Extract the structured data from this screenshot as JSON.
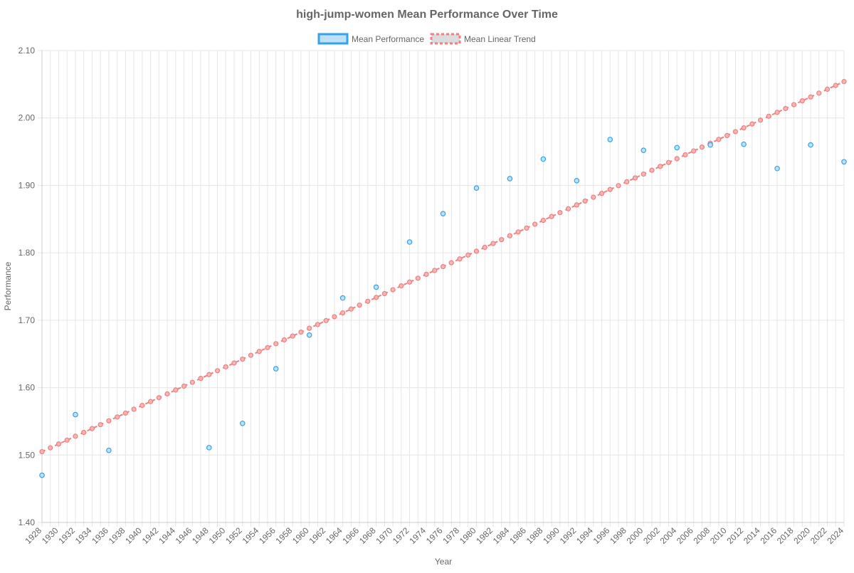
{
  "chart_data": {
    "type": "scatter",
    "title": "high-jump-women Mean Performance Over Time",
    "xlabel": "Year",
    "ylabel": "Performance",
    "xlim": [
      1928,
      2024
    ],
    "ylim": [
      1.4,
      2.1
    ],
    "y_ticks": [
      "1.40",
      "1.50",
      "1.60",
      "1.70",
      "1.80",
      "1.90",
      "2.00",
      "2.10"
    ],
    "x_ticks": [
      "1928",
      "1930",
      "1932",
      "1934",
      "1936",
      "1938",
      "1940",
      "1942",
      "1944",
      "1946",
      "1948",
      "1950",
      "1952",
      "1954",
      "1956",
      "1958",
      "1960",
      "1962",
      "1964",
      "1966",
      "1968",
      "1970",
      "1972",
      "1974",
      "1976",
      "1978",
      "1980",
      "1982",
      "1984",
      "1986",
      "1988",
      "1990",
      "1992",
      "1994",
      "1996",
      "1998",
      "2000",
      "2002",
      "2004",
      "2006",
      "2008",
      "2010",
      "2012",
      "2014",
      "2016",
      "2018",
      "2020",
      "2022",
      "2024"
    ],
    "grid": true,
    "legend_position": "top",
    "series": [
      {
        "name": "Mean Performance",
        "kind": "points",
        "stroke": "#36a2eb",
        "fill": "#bfe1f7",
        "x": [
          1928,
          1932,
          1936,
          1948,
          1952,
          1956,
          1960,
          1964,
          1968,
          1972,
          1976,
          1980,
          1984,
          1988,
          1992,
          1996,
          2000,
          2004,
          2008,
          2012,
          2016,
          2020,
          2024
        ],
        "y": [
          1.47,
          1.56,
          1.507,
          1.511,
          1.547,
          1.628,
          1.678,
          1.733,
          1.749,
          1.816,
          1.858,
          1.896,
          1.91,
          1.939,
          1.907,
          1.968,
          1.952,
          1.956,
          1.96,
          1.961,
          1.925,
          1.96,
          1.935
        ]
      },
      {
        "name": "Mean Linear Trend",
        "kind": "trend",
        "stroke": "#f07f7f",
        "fill": "#f5b5b5",
        "x_start": 1928,
        "x_end": 2024,
        "y_start": 1.505,
        "y_end": 2.054
      }
    ]
  }
}
